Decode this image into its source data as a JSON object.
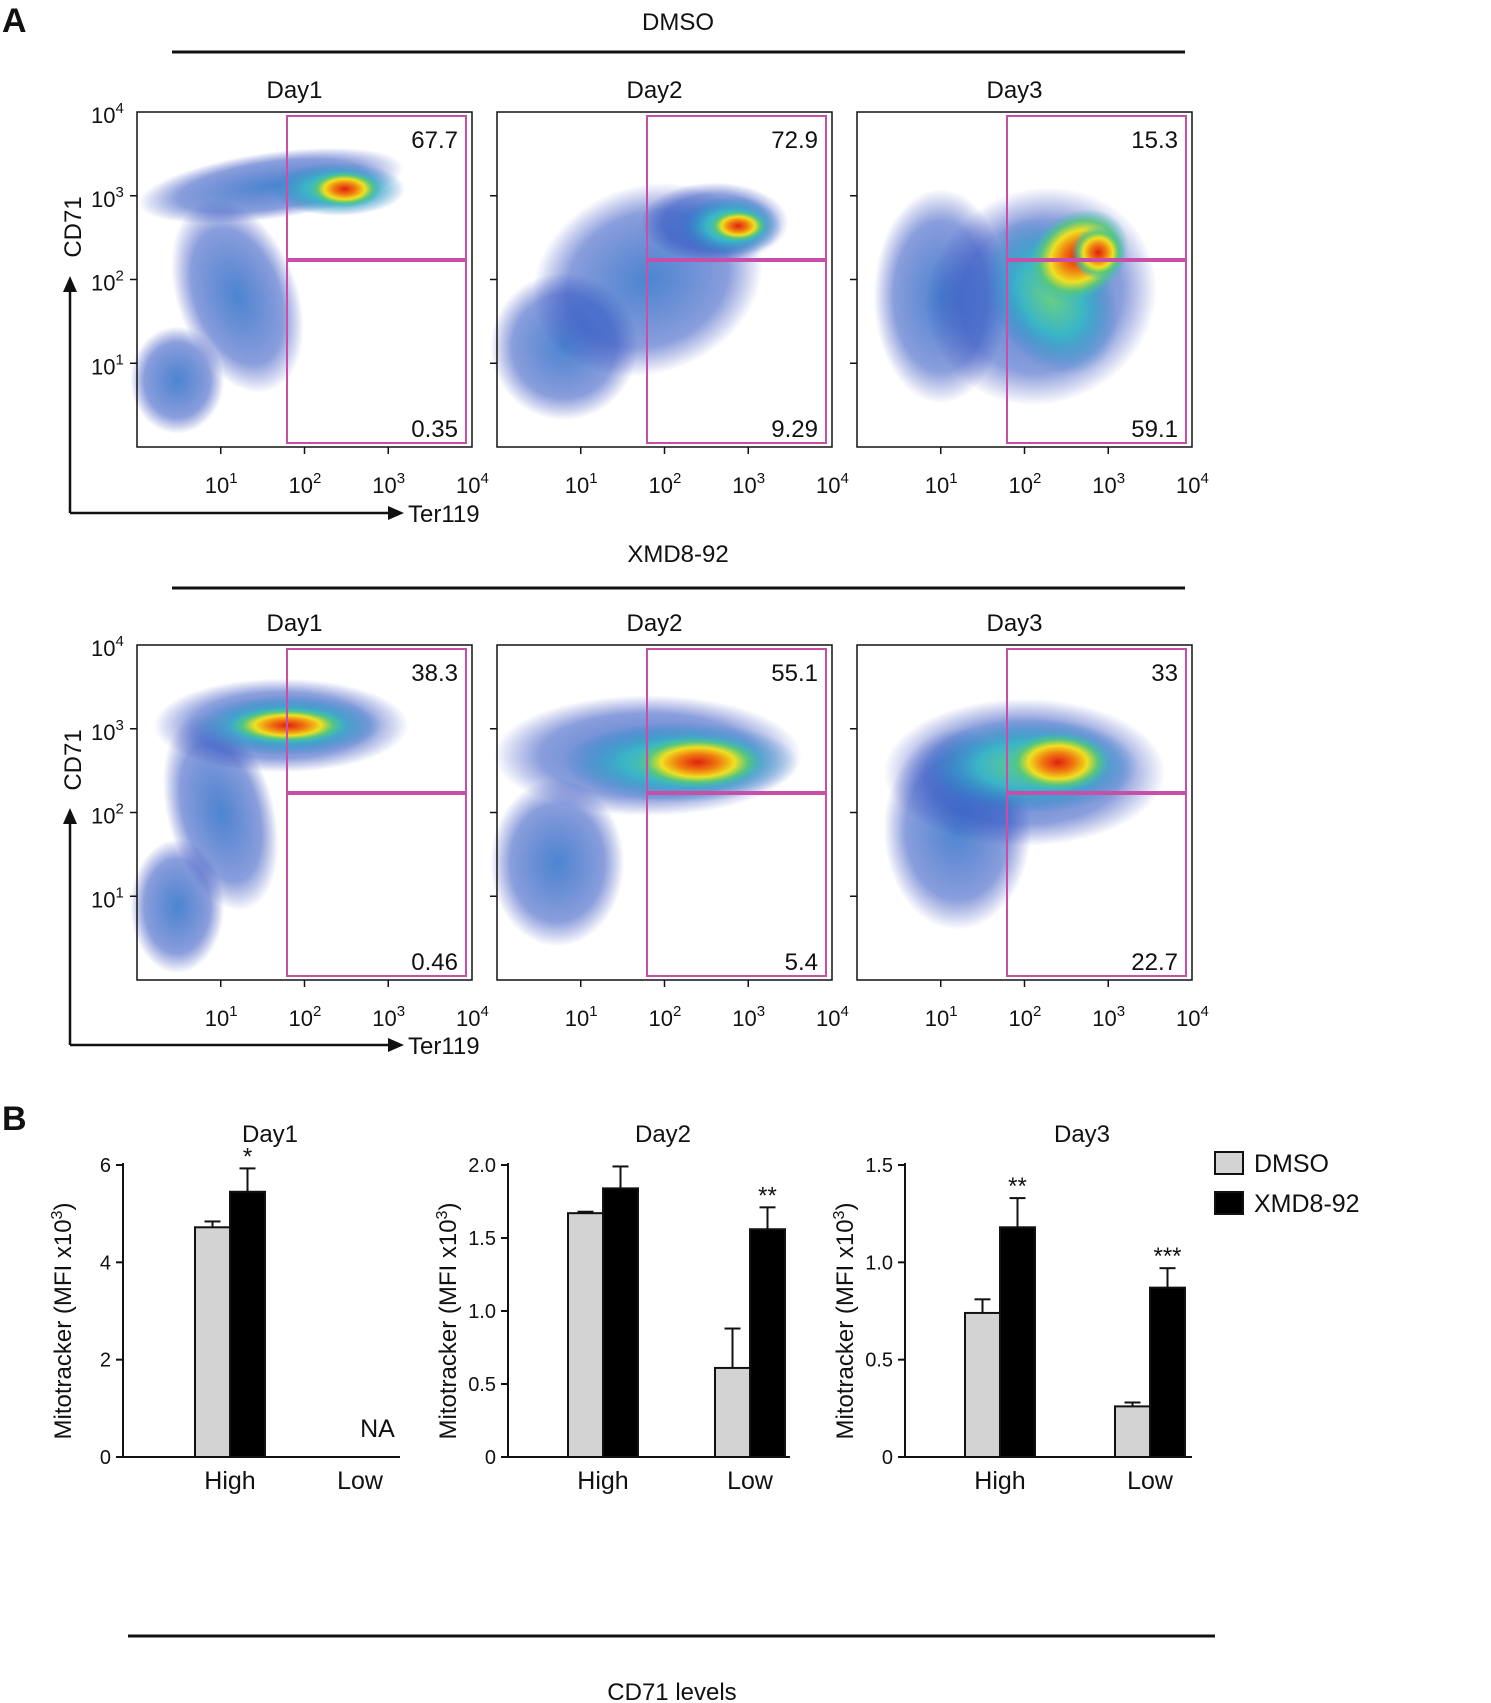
{
  "panel_a": {
    "label": "A",
    "x_axis_label": "Ter119",
    "y_axis_label": "CD71",
    "x_ticks": [
      {
        "base": "10",
        "exp": "1"
      },
      {
        "base": "10",
        "exp": "2"
      },
      {
        "base": "10",
        "exp": "3"
      },
      {
        "base": "10",
        "exp": "4"
      }
    ],
    "y_ticks": [
      {
        "base": "10",
        "exp": "1"
      },
      {
        "base": "10",
        "exp": "2"
      },
      {
        "base": "10",
        "exp": "3"
      },
      {
        "base": "10",
        "exp": "4"
      }
    ],
    "rows": [
      {
        "condition": "DMSO",
        "plots": [
          {
            "day": "Day1",
            "upper_pct": "67.7",
            "lower_pct": "0.35"
          },
          {
            "day": "Day2",
            "upper_pct": "72.9",
            "lower_pct": "9.29"
          },
          {
            "day": "Day3",
            "upper_pct": "15.3",
            "lower_pct": "59.1"
          }
        ]
      },
      {
        "condition": "XMD8-92",
        "plots": [
          {
            "day": "Day1",
            "upper_pct": "38.3",
            "lower_pct": "0.46"
          },
          {
            "day": "Day2",
            "upper_pct": "55.1",
            "lower_pct": "5.4"
          },
          {
            "day": "Day3",
            "upper_pct": "33",
            "lower_pct": "22.7"
          }
        ]
      }
    ],
    "colors": {
      "gate": "#c84fa8",
      "density_low": "#2a4fc0",
      "density_mid": "#3ab5c8",
      "density_high": "#f0e020",
      "density_peak": "#e02010"
    }
  },
  "panel_b": {
    "label": "B",
    "y_axis_label_main": "Mitotracker (MFI x10",
    "y_axis_label_sup": "3",
    "y_axis_label_end": ")",
    "shared_xlabel": "CD71 levels",
    "legend": [
      {
        "name": "DMSO",
        "color": "#d3d3d3"
      },
      {
        "name": "XMD8-92",
        "color": "#000000"
      }
    ]
  },
  "chart_data": [
    {
      "type": "bar",
      "title": "Day1",
      "categories": [
        "High",
        "Low"
      ],
      "ylim": [
        0,
        6
      ],
      "yticks": [
        "0",
        "2",
        "4",
        "6"
      ],
      "ytick_values": [
        0,
        2,
        4,
        6
      ],
      "series": [
        {
          "name": "DMSO",
          "values": [
            4.72,
            null
          ],
          "errors": [
            0.12,
            null
          ]
        },
        {
          "name": "XMD8-92",
          "values": [
            5.45,
            null
          ],
          "errors": [
            0.48,
            null
          ]
        }
      ],
      "na_labels": [
        "",
        "NA",
        "",
        "NA"
      ],
      "significance": [
        "",
        "*",
        "",
        ""
      ]
    },
    {
      "type": "bar",
      "title": "Day2",
      "categories": [
        "High",
        "Low"
      ],
      "ylim": [
        0,
        2.0
      ],
      "yticks": [
        "0",
        "0.5",
        "1.0",
        "1.5",
        "2.0"
      ],
      "ytick_values": [
        0,
        0.5,
        1.0,
        1.5,
        2.0
      ],
      "series": [
        {
          "name": "DMSO",
          "values": [
            1.67,
            0.61
          ],
          "errors": [
            0.01,
            0.27
          ]
        },
        {
          "name": "XMD8-92",
          "values": [
            1.84,
            1.56
          ],
          "errors": [
            0.15,
            0.15
          ]
        }
      ],
      "significance": [
        "",
        "",
        "",
        "**"
      ]
    },
    {
      "type": "bar",
      "title": "Day3",
      "categories": [
        "High",
        "Low"
      ],
      "ylim": [
        0,
        1.5
      ],
      "yticks": [
        "0",
        "0.5",
        "1.0",
        "1.5"
      ],
      "ytick_values": [
        0,
        0.5,
        1.0,
        1.5
      ],
      "series": [
        {
          "name": "DMSO",
          "values": [
            0.74,
            0.26
          ],
          "errors": [
            0.07,
            0.02
          ]
        },
        {
          "name": "XMD8-92",
          "values": [
            1.18,
            0.87
          ],
          "errors": [
            0.15,
            0.1
          ]
        }
      ],
      "significance": [
        "",
        "**",
        "",
        "***"
      ]
    }
  ]
}
